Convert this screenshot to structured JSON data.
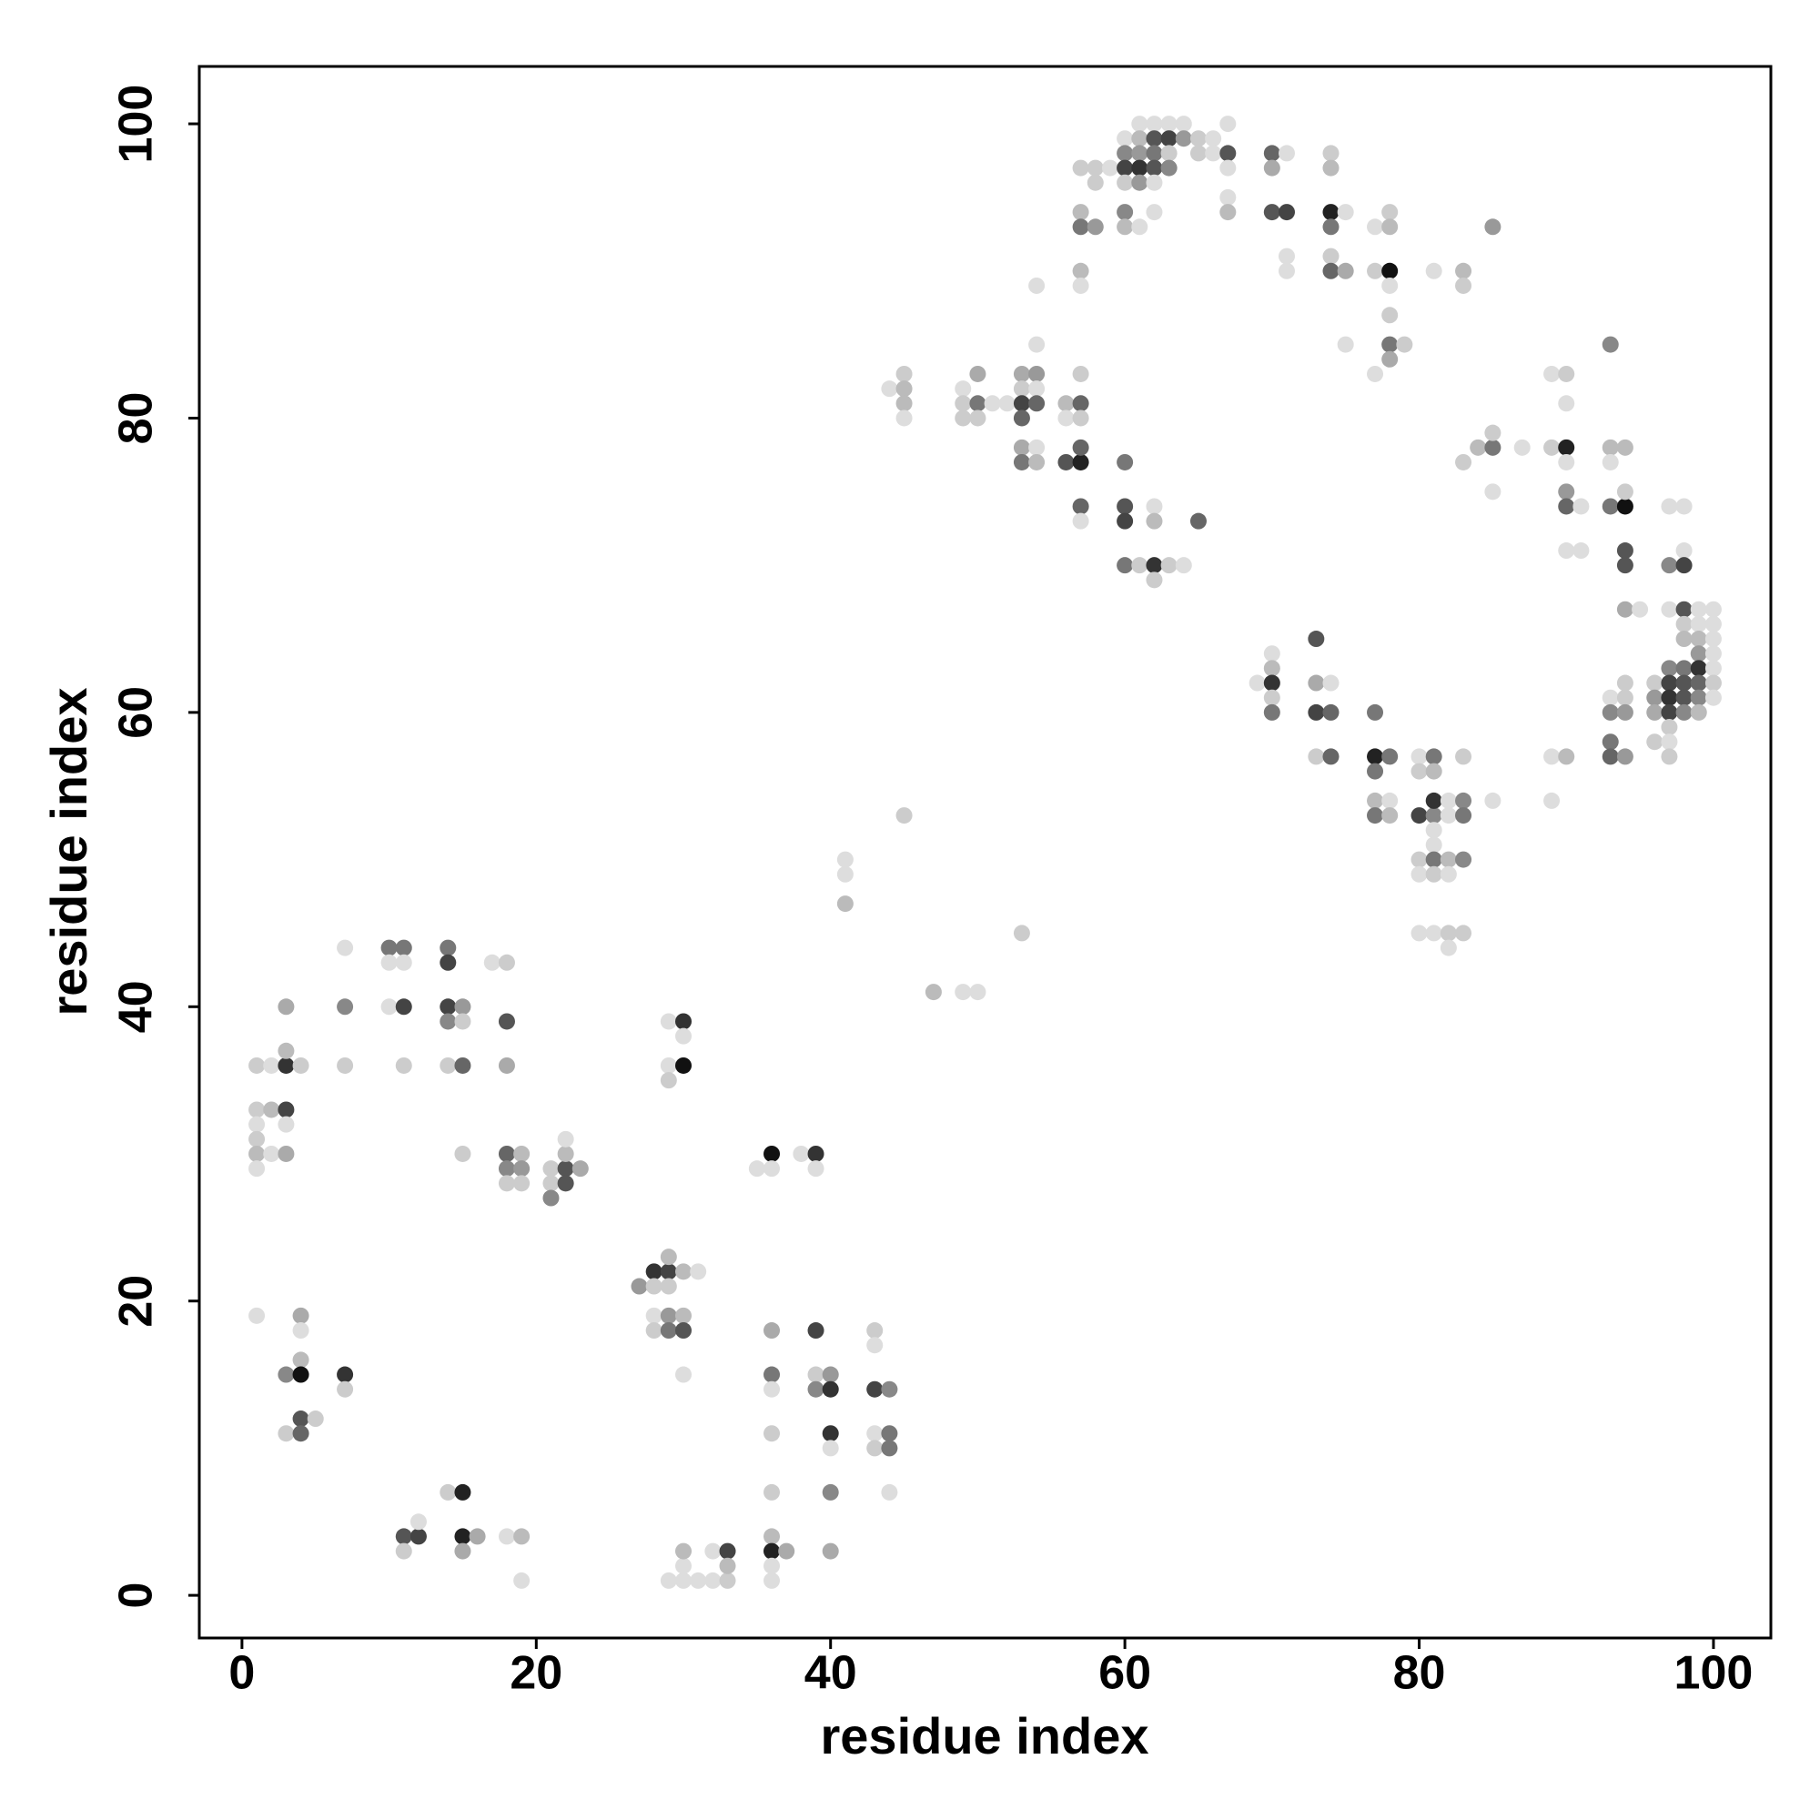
{
  "chart_data": {
    "type": "scatter",
    "x_label": "residue index",
    "y_label": "residue index",
    "xlim": [
      -2.9,
      103.9
    ],
    "ylim": [
      -2.9,
      103.9
    ],
    "xticks": [
      0,
      20,
      40,
      60,
      80,
      100
    ],
    "yticks": [
      0,
      20,
      40,
      60,
      80,
      100
    ],
    "x": [
      1,
      2,
      3,
      4,
      3,
      3,
      1,
      2,
      3,
      1,
      3,
      1,
      1,
      2,
      3,
      1,
      7,
      7,
      7,
      10,
      11,
      10,
      11,
      10,
      11,
      11,
      14,
      14,
      14,
      15,
      14,
      15,
      14,
      15,
      15,
      17,
      18,
      18,
      18,
      18,
      19,
      18,
      19,
      18,
      19,
      21,
      22,
      23,
      22,
      22,
      21,
      22,
      21,
      29,
      30,
      30,
      29,
      30,
      29,
      35,
      36,
      36,
      38,
      39,
      39,
      27,
      28,
      29,
      30,
      31,
      29,
      28,
      29,
      28,
      29,
      30,
      28,
      29,
      30,
      30,
      1,
      4,
      4,
      4,
      3,
      4,
      7,
      7,
      4,
      5,
      3,
      4,
      11,
      12,
      11,
      12,
      14,
      15,
      15,
      16,
      15,
      18,
      19,
      19,
      29,
      30,
      31,
      32,
      33,
      30,
      30,
      32,
      33,
      33,
      36,
      36,
      36,
      36,
      36,
      36,
      36,
      37,
      36,
      36,
      39,
      39,
      40,
      39,
      40,
      40,
      40,
      40,
      40,
      43,
      43,
      43,
      44,
      43,
      44,
      43,
      44,
      44,
      41,
      41,
      41,
      45,
      47,
      49,
      50,
      53,
      44,
      45,
      45,
      45,
      45,
      49,
      50,
      49,
      50,
      49,
      50,
      51,
      52,
      53,
      54,
      53,
      54,
      53,
      54,
      53,
      54,
      54,
      53,
      54,
      53,
      54,
      56,
      57,
      57,
      56,
      57,
      56,
      57,
      57,
      57,
      57,
      60,
      60,
      60,
      62,
      62,
      65,
      60,
      61,
      62,
      63,
      64,
      62,
      57,
      58,
      59,
      58,
      57,
      57,
      58,
      57,
      57,
      60,
      61,
      62,
      63,
      64,
      61,
      62,
      63,
      64,
      65,
      66,
      60,
      61,
      62,
      63,
      65,
      66,
      60,
      61,
      62,
      63,
      60,
      61,
      62,
      60,
      60,
      61,
      62,
      67,
      67,
      67,
      67,
      67,
      70,
      71,
      70,
      70,
      71,
      71,
      71,
      74,
      74,
      74,
      75,
      74,
      74,
      74,
      75,
      77,
      78,
      78,
      77,
      78,
      78,
      78,
      78,
      79,
      78,
      77,
      75,
      81,
      83,
      83,
      85,
      83,
      84,
      85,
      85,
      85,
      87,
      85,
      89,
      90,
      90,
      89,
      90,
      90,
      90,
      90,
      91,
      90,
      91,
      93,
      93,
      94,
      93,
      93,
      94,
      94,
      94,
      94,
      94,
      95,
      97,
      98,
      98,
      97,
      98,
      97,
      98,
      99,
      100,
      98,
      99,
      100,
      98,
      99,
      100,
      99,
      100,
      97,
      98,
      99,
      100,
      96,
      97,
      98,
      99,
      100,
      96,
      97,
      98,
      99,
      100,
      96,
      97,
      98,
      99,
      97,
      96,
      97,
      97,
      94,
      93,
      94,
      93,
      94,
      93,
      93,
      94,
      89,
      90,
      89,
      70,
      70,
      69,
      70,
      70,
      70,
      73,
      73,
      74,
      73,
      74,
      77,
      73,
      74,
      77,
      78,
      77,
      77,
      78,
      77,
      78,
      80,
      81,
      80,
      81,
      80,
      81,
      81,
      82,
      83,
      82,
      83,
      83,
      81,
      81,
      80,
      81,
      82,
      83,
      80,
      81,
      82,
      80,
      81,
      82,
      83,
      82
    ],
    "values": [
      36,
      36,
      36,
      36,
      37,
      40,
      33,
      33,
      33,
      32,
      32,
      31,
      30,
      30,
      30,
      29,
      44,
      40,
      36,
      44,
      44,
      43,
      43,
      40,
      40,
      36,
      44,
      43,
      40,
      40,
      39,
      39,
      36,
      36,
      30,
      43,
      43,
      39,
      36,
      30,
      30,
      29,
      29,
      28,
      28,
      29,
      29,
      29,
      30,
      31,
      28,
      28,
      27,
      39,
      39,
      38,
      36,
      36,
      35,
      29,
      30,
      29,
      30,
      30,
      29,
      21,
      22,
      22,
      22,
      22,
      23,
      21,
      21,
      19,
      19,
      19,
      18,
      18,
      18,
      15,
      19,
      19,
      18,
      16,
      15,
      15,
      15,
      14,
      12,
      12,
      11,
      11,
      4,
      4,
      3,
      5,
      7,
      7,
      4,
      4,
      3,
      4,
      4,
      1,
      1,
      1,
      1,
      1,
      1,
      2,
      3,
      3,
      3,
      2,
      18,
      15,
      14,
      11,
      7,
      4,
      3,
      3,
      2,
      1,
      18,
      15,
      15,
      14,
      14,
      11,
      10,
      7,
      3,
      18,
      17,
      14,
      14,
      11,
      11,
      10,
      10,
      7,
      50,
      49,
      47,
      53,
      41,
      41,
      41,
      45,
      82,
      83,
      82,
      81,
      80,
      82,
      83,
      81,
      81,
      80,
      80,
      81,
      81,
      83,
      83,
      82,
      82,
      81,
      81,
      80,
      85,
      89,
      78,
      78,
      77,
      77,
      81,
      81,
      83,
      80,
      80,
      77,
      77,
      78,
      74,
      73,
      77,
      74,
      73,
      74,
      73,
      73,
      70,
      70,
      70,
      70,
      70,
      69,
      97,
      97,
      97,
      96,
      94,
      93,
      93,
      90,
      89,
      99,
      100,
      100,
      100,
      100,
      99,
      99,
      99,
      99,
      99,
      99,
      98,
      98,
      98,
      98,
      98,
      98,
      97,
      97,
      97,
      97,
      96,
      96,
      96,
      94,
      93,
      93,
      94,
      100,
      98,
      97,
      95,
      94,
      98,
      98,
      97,
      94,
      94,
      91,
      90,
      98,
      97,
      94,
      94,
      93,
      91,
      90,
      90,
      93,
      94,
      93,
      90,
      90,
      89,
      87,
      85,
      85,
      84,
      83,
      85,
      90,
      90,
      89,
      93,
      77,
      78,
      78,
      79,
      75,
      78,
      54,
      83,
      83,
      81,
      78,
      78,
      77,
      75,
      74,
      74,
      71,
      71,
      85,
      78,
      78,
      77,
      74,
      74,
      75,
      71,
      70,
      67,
      67,
      74,
      74,
      71,
      70,
      70,
      67,
      67,
      67,
      67,
      66,
      66,
      66,
      65,
      65,
      65,
      64,
      64,
      63,
      63,
      63,
      63,
      62,
      62,
      62,
      62,
      62,
      61,
      61,
      61,
      61,
      61,
      60,
      60,
      60,
      60,
      59,
      58,
      58,
      57,
      62,
      61,
      61,
      60,
      60,
      58,
      57,
      57,
      57,
      57,
      54,
      64,
      63,
      62,
      62,
      61,
      60,
      65,
      62,
      62,
      60,
      60,
      60,
      57,
      57,
      57,
      57,
      56,
      54,
      54,
      53,
      53,
      57,
      57,
      56,
      56,
      53,
      53,
      54,
      54,
      54,
      53,
      53,
      57,
      52,
      51,
      50,
      50,
      50,
      50,
      49,
      49,
      49,
      45,
      45,
      45,
      45,
      44
    ],
    "colors": [
      "#ccc",
      "#ddd",
      "#333",
      "#ccc",
      "#bbb",
      "#aaa",
      "#ccc",
      "#bbb",
      "#444",
      "#ddd",
      "#ddd",
      "#ccc",
      "#bbb",
      "#ddd",
      "#aaa",
      "#ddd",
      "#ddd",
      "#888",
      "#ccc",
      "#777",
      "#777",
      "#ddd",
      "#ddd",
      "#ddd",
      "#444",
      "#ccc",
      "#777",
      "#444",
      "#444",
      "#999",
      "#888",
      "#ccc",
      "#ccc",
      "#666",
      "#ccc",
      "#ddd",
      "#ccc",
      "#555",
      "#aaa",
      "#666",
      "#bbb",
      "#888",
      "#999",
      "#ccc",
      "#ccc",
      "#ccc",
      "#555",
      "#aaa",
      "#bbb",
      "#ddd",
      "#ccc",
      "#555",
      "#888",
      "#ddd",
      "#333",
      "#ddd",
      "#ddd",
      "#111",
      "#ccc",
      "#ddd",
      "#111",
      "#ddd",
      "#ddd",
      "#333",
      "#ddd",
      "#999",
      "#333",
      "#444",
      "#bbb",
      "#ddd",
      "#bbb",
      "#ccc",
      "#ccc",
      "#ddd",
      "#999",
      "#bbb",
      "#ccc",
      "#777",
      "#555",
      "#ddd",
      "#ddd",
      "#aaa",
      "#ddd",
      "#bbb",
      "#888",
      "#111",
      "#333",
      "#ccc",
      "#555",
      "#ccc",
      "#ccc",
      "#666",
      "#555",
      "#444",
      "#ccc",
      "#ddd",
      "#ccc",
      "#222",
      "#222",
      "#aaa",
      "#aaa",
      "#ddd",
      "#bbb",
      "#ddd",
      "#ddd",
      "#ddd",
      "#ddd",
      "#ddd",
      "#ccc",
      "#ddd",
      "#bbb",
      "#ddd",
      "#444",
      "#bbb",
      "#aaa",
      "#777",
      "#ddd",
      "#ccc",
      "#ccc",
      "#bbb",
      "#222",
      "#aaa",
      "#ddd",
      "#ddd",
      "#444",
      "#ccc",
      "#999",
      "#888",
      "#333",
      "#333",
      "#ddd",
      "#888",
      "#aaa",
      "#ccc",
      "#ddd",
      "#444",
      "#888",
      "#ddd",
      "#777",
      "#ccc",
      "#777",
      "#ddd",
      "#ddd",
      "#ddd",
      "#bbb",
      "#ccc",
      "#bbb",
      "#ddd",
      "#ddd",
      "#ccc",
      "#ddd",
      "#ccc",
      "#bbb",
      "#bbb",
      "#ddd",
      "#ddd",
      "#aaa",
      "#ccc",
      "#777",
      "#ccc",
      "#ccc",
      "#ddd",
      "#ddd",
      "#aaa",
      "#999",
      "#ccc",
      "#ddd",
      "#444",
      "#666",
      "#666",
      "#ddd",
      "#ddd",
      "#aaa",
      "#ddd",
      "#777",
      "#bbb",
      "#bbb",
      "#666",
      "#ccc",
      "#ddd",
      "#ccc",
      "#555",
      "#222",
      "#666",
      "#666",
      "#ddd",
      "#777",
      "#555",
      "#444",
      "#ddd",
      "#bbb",
      "#666",
      "#777",
      "#ccc",
      "#333",
      "#ccc",
      "#ddd",
      "#ccc",
      "#ccc",
      "#ccc",
      "#ddd",
      "#ccc",
      "#bbb",
      "#777",
      "#999",
      "#bbb",
      "#ddd",
      "#ddd",
      "#ddd",
      "#ddd",
      "#ddd",
      "#ddd",
      "#bbb",
      "#555",
      "#444",
      "#999",
      "#ccc",
      "#ddd",
      "#888",
      "#999",
      "#777",
      "#ccc",
      "#ccc",
      "#ddd",
      "#444",
      "#333",
      "#555",
      "#888",
      "#ccc",
      "#999",
      "#ddd",
      "#888",
      "#bbb",
      "#ddd",
      "#ddd",
      "#ddd",
      "#555",
      "#ddd",
      "#ddd",
      "#bbb",
      "#666",
      "#ddd",
      "#aaa",
      "#555",
      "#444",
      "#ddd",
      "#ddd",
      "#ccc",
      "#bbb",
      "#222",
      "#ddd",
      "#777",
      "#ccc",
      "#666",
      "#aaa",
      "#ddd",
      "#ccc",
      "#bbb",
      "#ccc",
      "#111",
      "#ddd",
      "#ccc",
      "#777",
      "#ccc",
      "#aaa",
      "#ddd",
      "#ddd",
      "#ddd",
      "#bbb",
      "#ccc",
      "#999",
      "#ccc",
      "#bbb",
      "#777",
      "#ccc",
      "#ddd",
      "#ddd",
      "#ddd",
      "#ddd",
      "#ccc",
      "#ddd",
      "#ccc",
      "#222",
      "#ddd",
      "#999",
      "#666",
      "#ddd",
      "#ddd",
      "#ddd",
      "#888",
      "#bbb",
      "#bbb",
      "#ddd",
      "#777",
      "#111",
      "#ccc",
      "#555",
      "#555",
      "#aaa",
      "#ddd",
      "#ddd",
      "#ddd",
      "#ddd",
      "#888",
      "#444",
      "#ddd",
      "#555",
      "#ddd",
      "#ddd",
      "#ccc",
      "#ddd",
      "#ddd",
      "#bbb",
      "#bbb",
      "#ddd",
      "#999",
      "#ddd",
      "#888",
      "#777",
      "#333",
      "#ddd",
      "#ccc",
      "#444",
      "#555",
      "#666",
      "#ccc",
      "#999",
      "#333",
      "#555",
      "#888",
      "#ddd",
      "#aaa",
      "#444",
      "#888",
      "#bbb",
      "#ccc",
      "#ccc",
      "#ddd",
      "#ccc",
      "#ccc",
      "#ddd",
      "#ccc",
      "#888",
      "#999",
      "#777",
      "#666",
      "#999",
      "#ddd",
      "#bbb",
      "#ddd",
      "#ddd",
      "#bbb",
      "#ddd",
      "#333",
      "#ccc",
      "#777",
      "#555",
      "#aaa",
      "#ddd",
      "#444",
      "#666",
      "#777",
      "#ccc",
      "#666",
      "#222",
      "#777",
      "#777",
      "#bbb",
      "#ddd",
      "#777",
      "#bbb",
      "#ddd",
      "#777",
      "#ccc",
      "#bbb",
      "#444",
      "#888",
      "#333",
      "#ddd",
      "#888",
      "#ddd",
      "#777",
      "#ccc",
      "#ddd",
      "#ddd",
      "#ccc",
      "#777",
      "#bbb",
      "#888",
      "#ddd",
      "#ccc",
      "#ddd",
      "#ddd",
      "#ddd",
      "#ccc",
      "#ccc",
      "#ddd"
    ]
  }
}
